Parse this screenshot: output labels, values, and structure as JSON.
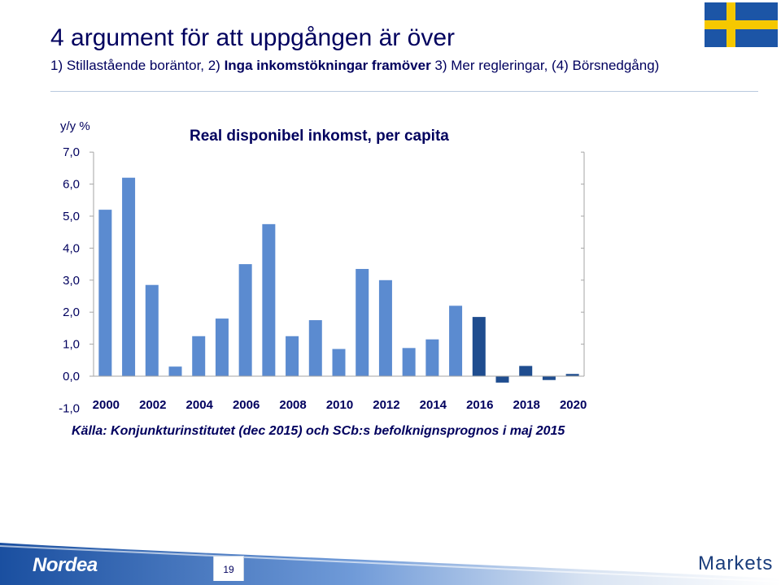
{
  "slide": {
    "title": "4 argument för att uppgången är över",
    "subtitle_parts": [
      {
        "text": "1) Stillastående boräntor, 2) ",
        "bold": false
      },
      {
        "text": "Inga inkomstökningar framöver",
        "bold": true
      },
      {
        "text": " 3) Mer regleringar, (4) Börsnedgång)",
        "bold": false
      }
    ],
    "source": "Källa: Konjunkturinstitutet (dec 2015) och SCb:s befolknignsprognos i maj 2015",
    "page_number": "19",
    "logo_left": "Nordea",
    "logo_right": "Markets"
  },
  "colors": {
    "text": "#00005e",
    "historical": "#5b8bd0",
    "forecast": "#1f4d8f",
    "axis": "#a6a6a6",
    "flag_blue": "#1c55a6",
    "flag_yellow": "#f5c800"
  },
  "icons": {
    "flag": "swedish-flag-icon",
    "logo": "nordea-logo-icon"
  },
  "chart_data": {
    "type": "bar",
    "title": "Real disponibel inkomst, per capita",
    "ylabel": "y/y %",
    "ylim": [
      -1,
      7
    ],
    "yticks": [
      "-1,0",
      "0,0",
      "1,0",
      "2,0",
      "3,0",
      "4,0",
      "5,0",
      "6,0",
      "7,0"
    ],
    "xtick_labels": [
      "2000",
      "2002",
      "2004",
      "2006",
      "2008",
      "2010",
      "2012",
      "2014",
      "2016",
      "2018",
      "2020"
    ],
    "categories": [
      2000,
      2001,
      2002,
      2003,
      2004,
      2005,
      2006,
      2007,
      2008,
      2009,
      2010,
      2011,
      2012,
      2013,
      2014,
      2015,
      2016,
      2017,
      2018,
      2019,
      2020
    ],
    "values": [
      5.2,
      6.2,
      2.85,
      0.3,
      1.25,
      1.8,
      3.5,
      4.75,
      1.25,
      1.75,
      0.85,
      3.35,
      3.0,
      0.88,
      1.15,
      2.2,
      1.85,
      -0.2,
      0.32,
      -0.12,
      0.07
    ],
    "forecast_from": 2016,
    "grid": false,
    "legend": "none"
  }
}
